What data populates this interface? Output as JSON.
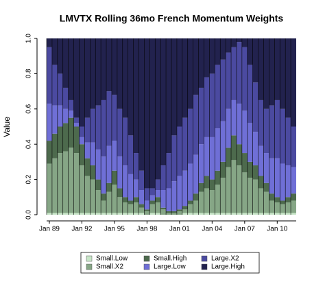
{
  "chart_data": {
    "type": "stacked_bar",
    "title": "LMVTX Rolling 36mo French Momentum Weights",
    "ylabel": "Value",
    "categories": [
      "Jan 89",
      null,
      null,
      null,
      null,
      null,
      "Jan 92",
      null,
      null,
      null,
      null,
      null,
      "Jan 95",
      null,
      null,
      null,
      null,
      null,
      "Jan 98",
      null,
      null,
      null,
      null,
      null,
      "Jan 01",
      null,
      null,
      null,
      null,
      null,
      "Jan 04",
      null,
      null,
      null,
      null,
      null,
      "Jan 07",
      null,
      null,
      null,
      null,
      null,
      "Jan 10",
      null,
      null,
      null
    ],
    "ylim": [
      0,
      1
    ],
    "yticks": [
      {
        "value": 0,
        "label": "0.0"
      },
      {
        "value": 0.2,
        "label": "0.2"
      },
      {
        "value": 0.4,
        "label": "0.4"
      },
      {
        "value": 0.6,
        "label": "0.6"
      },
      {
        "value": 0.8,
        "label": "0.8"
      },
      {
        "value": 1,
        "label": "1.0"
      }
    ],
    "series": [
      {
        "name": "Small.Low",
        "color": "#c8e6c8",
        "values": [
          0.01,
          0.01,
          0.01,
          0.01,
          0.01,
          0.01,
          0.01,
          0.01,
          0.01,
          0.01,
          0.01,
          0.01,
          0.01,
          0.01,
          0.01,
          0.01,
          0.01,
          0.01,
          0,
          0.01,
          0.01,
          0,
          0,
          0,
          0,
          0.01,
          0.01,
          0.01,
          0.01,
          0.01,
          0.01,
          0.01,
          0.01,
          0.01,
          0.01,
          0.01,
          0.01,
          0.01,
          0.01,
          0.01,
          0.01,
          0.01,
          0.01,
          0.01,
          0.01,
          0.01
        ]
      },
      {
        "name": "Small.X2",
        "color": "#86a686",
        "values": [
          0.28,
          0.31,
          0.34,
          0.35,
          0.37,
          0.34,
          0.27,
          0.21,
          0.19,
          0.13,
          0.07,
          0.12,
          0.16,
          0.09,
          0.06,
          0.05,
          0.06,
          0.03,
          0.02,
          0.05,
          0.06,
          0.03,
          0.01,
          0.01,
          0.02,
          0.02,
          0.05,
          0.07,
          0.12,
          0.14,
          0.13,
          0.16,
          0.2,
          0.26,
          0.3,
          0.27,
          0.23,
          0.2,
          0.19,
          0.14,
          0.12,
          0.07,
          0.06,
          0.05,
          0.06,
          0.07
        ]
      },
      {
        "name": "Small.High",
        "color": "#4d6a4d",
        "values": [
          0.13,
          0.14,
          0.15,
          0.16,
          0.17,
          0.15,
          0.12,
          0.1,
          0.08,
          0.06,
          0.04,
          0.05,
          0.08,
          0.05,
          0.03,
          0.02,
          0.03,
          0.02,
          0.01,
          0.02,
          0.03,
          0.01,
          0.01,
          0.01,
          0.01,
          0.02,
          0.02,
          0.04,
          0.05,
          0.07,
          0.06,
          0.08,
          0.09,
          0.11,
          0.14,
          0.12,
          0.11,
          0.09,
          0.08,
          0.07,
          0.05,
          0.04,
          0.03,
          0.02,
          0.03,
          0.04
        ]
      },
      {
        "name": "Large.Low",
        "color": "#6f6fd6",
        "values": [
          0.21,
          0.16,
          0.12,
          0.08,
          0.04,
          0.02,
          0.04,
          0.09,
          0.13,
          0.17,
          0.21,
          0.21,
          0.17,
          0.18,
          0.18,
          0.15,
          0.1,
          0.08,
          0.05,
          0.03,
          0.04,
          0.1,
          0.13,
          0.17,
          0.19,
          0.2,
          0.21,
          0.22,
          0.22,
          0.22,
          0.24,
          0.24,
          0.23,
          0.22,
          0.2,
          0.23,
          0.24,
          0.22,
          0.19,
          0.17,
          0.17,
          0.2,
          0.22,
          0.21,
          0.18,
          0.15
        ]
      },
      {
        "name": "Large.X2",
        "color": "#4b4aa0",
        "values": [
          0.32,
          0.23,
          0.18,
          0.12,
          0.06,
          0.03,
          0.06,
          0.14,
          0.19,
          0.25,
          0.32,
          0.31,
          0.26,
          0.27,
          0.27,
          0.22,
          0.15,
          0.11,
          0.07,
          0.04,
          0.06,
          0.14,
          0.2,
          0.26,
          0.28,
          0.3,
          0.31,
          0.34,
          0.32,
          0.34,
          0.36,
          0.36,
          0.35,
          0.32,
          0.3,
          0.35,
          0.36,
          0.33,
          0.28,
          0.26,
          0.25,
          0.3,
          0.33,
          0.31,
          0.27,
          0.23
        ]
      },
      {
        "name": "Large.High",
        "color": "#22224e",
        "values": [
          0.05,
          0.15,
          0.2,
          0.28,
          0.35,
          0.45,
          0.5,
          0.45,
          0.4,
          0.38,
          0.35,
          0.3,
          0.32,
          0.4,
          0.45,
          0.55,
          0.65,
          0.75,
          0.85,
          0.85,
          0.8,
          0.72,
          0.65,
          0.55,
          0.5,
          0.45,
          0.4,
          0.32,
          0.28,
          0.22,
          0.2,
          0.15,
          0.12,
          0.08,
          0.05,
          0.02,
          0.05,
          0.15,
          0.25,
          0.35,
          0.4,
          0.38,
          0.35,
          0.4,
          0.45,
          0.5
        ]
      }
    ]
  }
}
